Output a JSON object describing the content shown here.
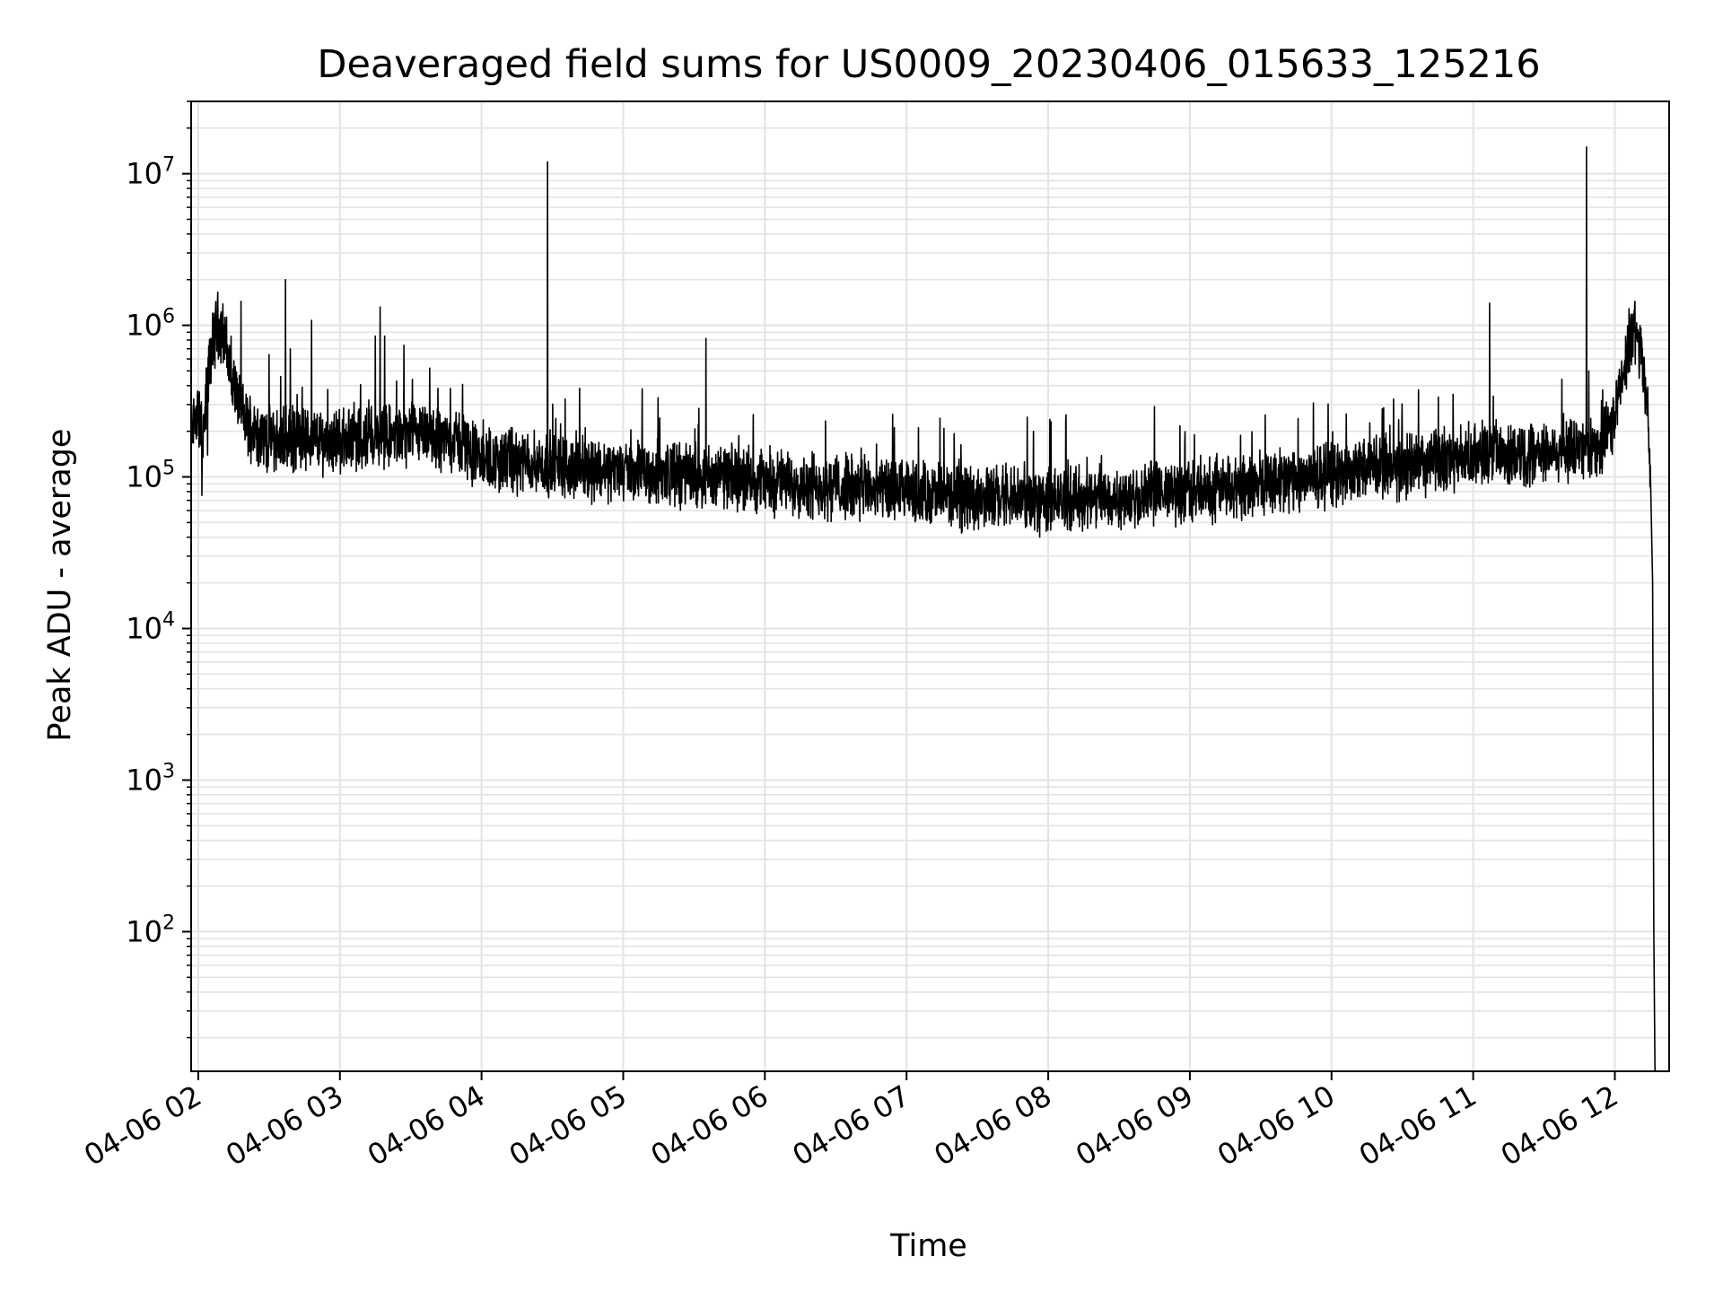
{
  "chart_data": {
    "type": "line",
    "title": "Deaveraged field sums for US0009_20230406_015633_125216",
    "xlabel": "Time",
    "ylabel": "Peak ADU - average",
    "y_scale": "log",
    "ylim": [
      12,
      30000000
    ],
    "xlim": [
      "2023-04-06 01:57",
      "2023-04-06 12:23"
    ],
    "grid": true,
    "line_color": "#000000",
    "x_ticks": [
      {
        "t": "2023-04-06 02:00",
        "label": "04-06 02"
      },
      {
        "t": "2023-04-06 03:00",
        "label": "04-06 03"
      },
      {
        "t": "2023-04-06 04:00",
        "label": "04-06 04"
      },
      {
        "t": "2023-04-06 05:00",
        "label": "04-06 05"
      },
      {
        "t": "2023-04-06 06:00",
        "label": "04-06 06"
      },
      {
        "t": "2023-04-06 07:00",
        "label": "04-06 07"
      },
      {
        "t": "2023-04-06 08:00",
        "label": "04-06 08"
      },
      {
        "t": "2023-04-06 09:00",
        "label": "04-06 09"
      },
      {
        "t": "2023-04-06 10:00",
        "label": "04-06 10"
      },
      {
        "t": "2023-04-06 11:00",
        "label": "04-06 11"
      },
      {
        "t": "2023-04-06 12:00",
        "label": "04-06 12"
      }
    ],
    "y_ticks": [
      {
        "value": 100,
        "base": "10",
        "exp": "2"
      },
      {
        "value": 1000,
        "base": "10",
        "exp": "3"
      },
      {
        "value": 10000,
        "base": "10",
        "exp": "4"
      },
      {
        "value": 100000,
        "base": "10",
        "exp": "5"
      },
      {
        "value": 1000000,
        "base": "10",
        "exp": "6"
      },
      {
        "value": 10000000,
        "base": "10",
        "exp": "7"
      }
    ],
    "series": [
      {
        "baseline": [
          [
            "2023-04-06 01:57",
            220000
          ],
          [
            "2023-04-06 02:00",
            260000
          ],
          [
            "2023-04-06 02:02",
            180000
          ],
          [
            "2023-04-06 02:05",
            600000
          ],
          [
            "2023-04-06 02:08",
            1050000
          ],
          [
            "2023-04-06 02:11",
            850000
          ],
          [
            "2023-04-06 02:14",
            450000
          ],
          [
            "2023-04-06 02:20",
            230000
          ],
          [
            "2023-04-06 02:30",
            175000
          ],
          [
            "2023-04-06 03:00",
            175000
          ],
          [
            "2023-04-06 03:30",
            185000
          ],
          [
            "2023-04-06 03:50",
            175000
          ],
          [
            "2023-04-06 04:00",
            130000
          ],
          [
            "2023-04-06 05:00",
            110000
          ],
          [
            "2023-04-06 06:00",
            95000
          ],
          [
            "2023-04-06 07:00",
            78000
          ],
          [
            "2023-04-06 08:00",
            70000
          ],
          [
            "2023-04-06 09:00",
            80000
          ],
          [
            "2023-04-06 10:00",
            105000
          ],
          [
            "2023-04-06 11:00",
            135000
          ],
          [
            "2023-04-06 11:55",
            160000
          ],
          [
            "2023-04-06 12:00",
            250000
          ],
          [
            "2023-04-06 12:05",
            650000
          ],
          [
            "2023-04-06 12:08",
            950000
          ],
          [
            "2023-04-06 12:11",
            700000
          ],
          [
            "2023-04-06 12:14",
            250000
          ],
          [
            "2023-04-06 12:15",
            130000
          ]
        ],
        "spikes": [
          [
            "2023-04-06 02:37",
            2000000
          ],
          [
            "2023-04-06 02:48",
            1080000
          ],
          [
            "2023-04-06 02:30",
            640000
          ],
          [
            "2023-04-06 02:39",
            700000
          ],
          [
            "2023-04-06 03:17",
            1320000
          ],
          [
            "2023-04-06 03:19",
            850000
          ],
          [
            "2023-04-06 03:15",
            850000
          ],
          [
            "2023-04-06 04:28",
            12000000
          ],
          [
            "2023-04-06 05:35",
            820000
          ],
          [
            "2023-04-06 11:07",
            1400000
          ],
          [
            "2023-04-06 11:48",
            15000000
          ],
          [
            "2023-04-06 11:49",
            500000
          ]
        ],
        "drop": [
          [
            "2023-04-06 12:15",
            120000
          ],
          [
            "2023-04-06 12:16",
            20000
          ],
          [
            "2023-04-06 12:16:30",
            100
          ],
          [
            "2023-04-06 12:17",
            12
          ]
        ]
      }
    ]
  }
}
